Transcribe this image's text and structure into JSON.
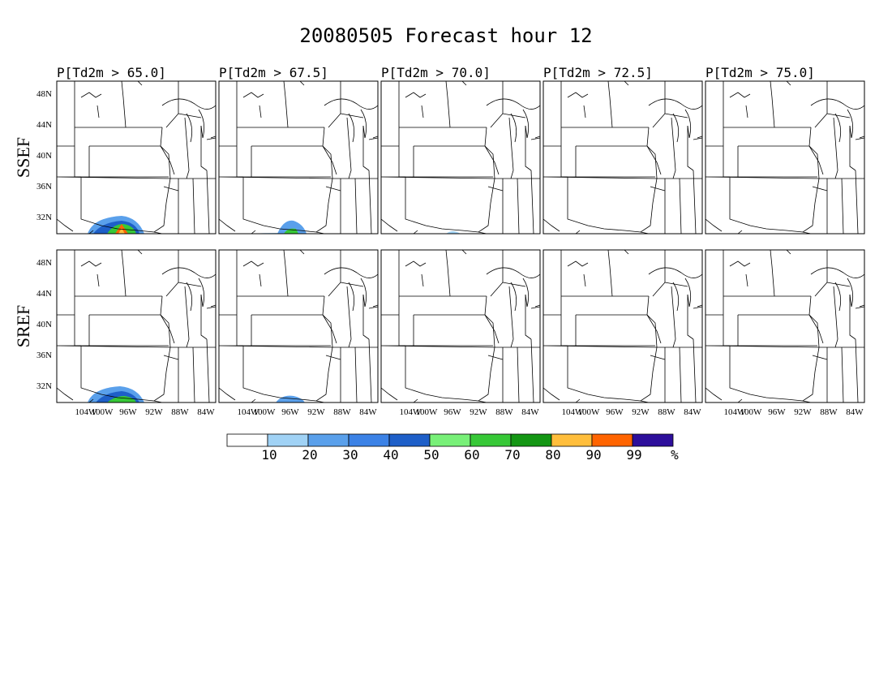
{
  "title": "20080505 Forecast hour 12",
  "panel_titles": [
    "P[Td2m > 65.0]",
    "P[Td2m > 67.5]",
    "P[Td2m > 70.0]",
    "P[Td2m > 72.5]",
    "P[Td2m > 75.0]"
  ],
  "row_labels": [
    "SSEF",
    "SREF"
  ],
  "lat_labels": [
    "48N",
    "44N",
    "40N",
    "36N",
    "32N"
  ],
  "lon_labels": [
    "104W",
    "100W",
    "96W",
    "92W",
    "88W",
    "84W"
  ],
  "colorbar": {
    "labels": [
      "10",
      "20",
      "30",
      "40",
      "50",
      "60",
      "70",
      "80",
      "90",
      "99",
      "%"
    ],
    "colors": [
      "#ffffff",
      "#a0d2f5",
      "#5aa0eb",
      "#3c82e6",
      "#1e5fc8",
      "#78f078",
      "#37c837",
      "#149614",
      "#ffbe3c",
      "#ff6400",
      "#2d0f9b"
    ]
  }
}
